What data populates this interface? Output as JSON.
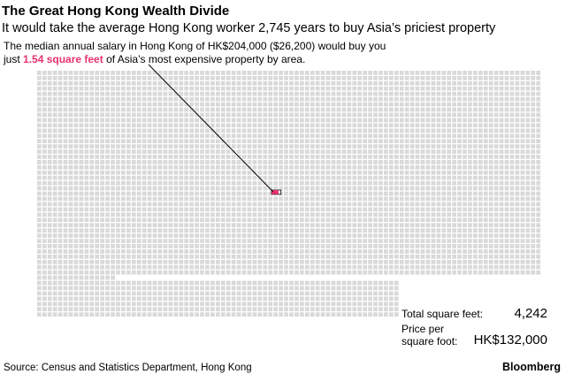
{
  "chart_data": {
    "type": "waffle",
    "title": "The Great Hong Kong Wealth Divide",
    "subtitle": "It would take the average Hong Kong worker 2,745 years to buy Asia’s priciest property",
    "annotation": {
      "before": "The median annual salary in Hong Kong of HK$204,000 ($26,200) would buy you just ",
      "highlight": "1.54 square feet",
      "after": " of Asia’s most expensive property by area.",
      "value": 1.54
    },
    "color": "#d9d9d9",
    "highlight_color": "#e8336d",
    "stats": [
      {
        "label": "Total square feet:",
        "value": 4242,
        "value_label": "4,242"
      },
      {
        "label": "Price per square foot:",
        "value_label": "HK$132,000"
      }
    ],
    "source": "Source: Census and Statistics Department, Hong Kong",
    "brand": "Bloomberg"
  }
}
